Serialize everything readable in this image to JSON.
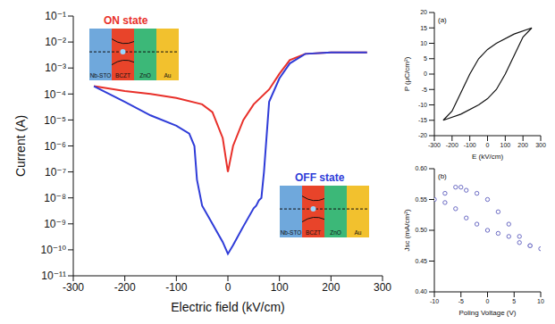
{
  "chart_data": [
    {
      "type": "line",
      "x_label": "Electric field (kV/cm)",
      "y_label": "Current (A)",
      "log": "y",
      "xlim": [
        -300,
        300
      ],
      "xticks": [
        -300,
        -200,
        -100,
        0,
        100,
        200,
        300
      ],
      "ylim": [
        1e-11,
        0.1
      ],
      "yticks": [
        {
          "value": 1e-11,
          "label": "10⁻¹¹"
        },
        {
          "value": 1e-10,
          "label": "10⁻¹⁰"
        },
        {
          "value": 1e-09,
          "label": "10⁻⁹"
        },
        {
          "value": 1e-08,
          "label": "10⁻⁸"
        },
        {
          "value": 1e-07,
          "label": "10⁻⁷"
        },
        {
          "value": 1e-06,
          "label": "10⁻⁶"
        },
        {
          "value": 1e-05,
          "label": "10⁻⁵"
        },
        {
          "value": 0.0001,
          "label": "10⁻⁴"
        },
        {
          "value": 0.001,
          "label": "10⁻³"
        },
        {
          "value": 0.01,
          "label": "10⁻²"
        },
        {
          "value": 0.1,
          "label": "10⁻¹"
        }
      ],
      "inset_layers": [
        "Nb-STO",
        "BCZT",
        "ZnO",
        "Au"
      ],
      "series": [
        {
          "name": "ON state",
          "color": "#e8302a",
          "x": [
            270,
            200,
            150,
            120,
            100,
            80,
            50,
            30,
            10,
            0,
            -10,
            -30,
            -50,
            -100,
            -150,
            -200,
            -260
          ],
          "values": [
            0.004,
            0.004,
            0.0035,
            0.002,
            0.0006,
            0.00015,
            4e-05,
            1e-05,
            1e-06,
            1e-07,
            2e-06,
            2e-05,
            4e-05,
            7e-05,
            0.0001,
            0.00013,
            0.0002
          ]
        },
        {
          "name": "OFF state",
          "color": "#2f3cd8",
          "x": [
            -260,
            -200,
            -150,
            -100,
            -75,
            -65,
            -60,
            -50,
            -30,
            -10,
            0,
            10,
            30,
            50,
            55,
            60,
            65,
            70,
            80,
            100,
            120,
            150,
            200,
            270
          ],
          "values": [
            0.0002,
            5e-05,
            1.5e-05,
            6e-06,
            3e-06,
            1e-06,
            5e-08,
            5e-09,
            1e-09,
            2e-10,
            7e-11,
            1.5e-10,
            8e-10,
            4e-09,
            5e-09,
            8e-09,
            1e-08,
            1e-07,
            5e-05,
            0.0004,
            0.0015,
            0.0035,
            0.004,
            0.004
          ]
        }
      ]
    },
    {
      "type": "line",
      "annotations": [
        "(a)"
      ],
      "x_label": "E (kV/cm)",
      "y_label": "P (μC/cm²)",
      "xlim": [
        -300,
        300
      ],
      "xticks": [
        -300,
        -200,
        -100,
        0,
        100,
        200,
        300
      ],
      "ylim": [
        -20,
        20
      ],
      "yticks": [
        -20,
        -15,
        -10,
        -5,
        0,
        5,
        10,
        15,
        20
      ],
      "series": [
        {
          "color": "#111111",
          "x": [
            250,
            150,
            50,
            0,
            -50,
            -100,
            -150,
            -200,
            -250,
            -150,
            -50,
            0,
            50,
            100,
            150,
            200,
            250
          ],
          "values": [
            15,
            13,
            10,
            8,
            5,
            0,
            -6,
            -12,
            -15,
            -13,
            -10,
            -8,
            -5,
            0,
            6,
            12,
            15
          ]
        }
      ]
    },
    {
      "type": "scatter",
      "annotations": [
        "(b)"
      ],
      "x_label": "Poling Voltage (V)",
      "y_label": "Jsc (mA/cm²)",
      "xlim": [
        -10,
        10
      ],
      "xticks": [
        -10,
        -5,
        0,
        5,
        10
      ],
      "ylim": [
        0.4,
        0.6
      ],
      "yticks": [
        {
          "value": 0.4,
          "label": "0.40"
        },
        {
          "value": 0.45,
          "label": "0.45"
        },
        {
          "value": 0.5,
          "label": "0.50"
        },
        {
          "value": 0.55,
          "label": "0.55"
        },
        {
          "value": 0.6,
          "label": "0.60"
        }
      ],
      "series": [
        {
          "color": "#6b6bc4",
          "marker": "circle",
          "line_style": "none",
          "x": [
            -10,
            -8,
            -6,
            -5,
            -4,
            -2,
            0,
            2,
            4,
            6,
            8,
            10,
            8,
            6,
            4,
            2,
            0,
            -2,
            -4,
            -6,
            -8
          ],
          "values": [
            0.55,
            0.56,
            0.57,
            0.57,
            0.565,
            0.56,
            0.55,
            0.53,
            0.51,
            0.49,
            0.475,
            0.47,
            0.475,
            0.48,
            0.49,
            0.495,
            0.5,
            0.51,
            0.52,
            0.535,
            0.545
          ]
        }
      ]
    }
  ]
}
